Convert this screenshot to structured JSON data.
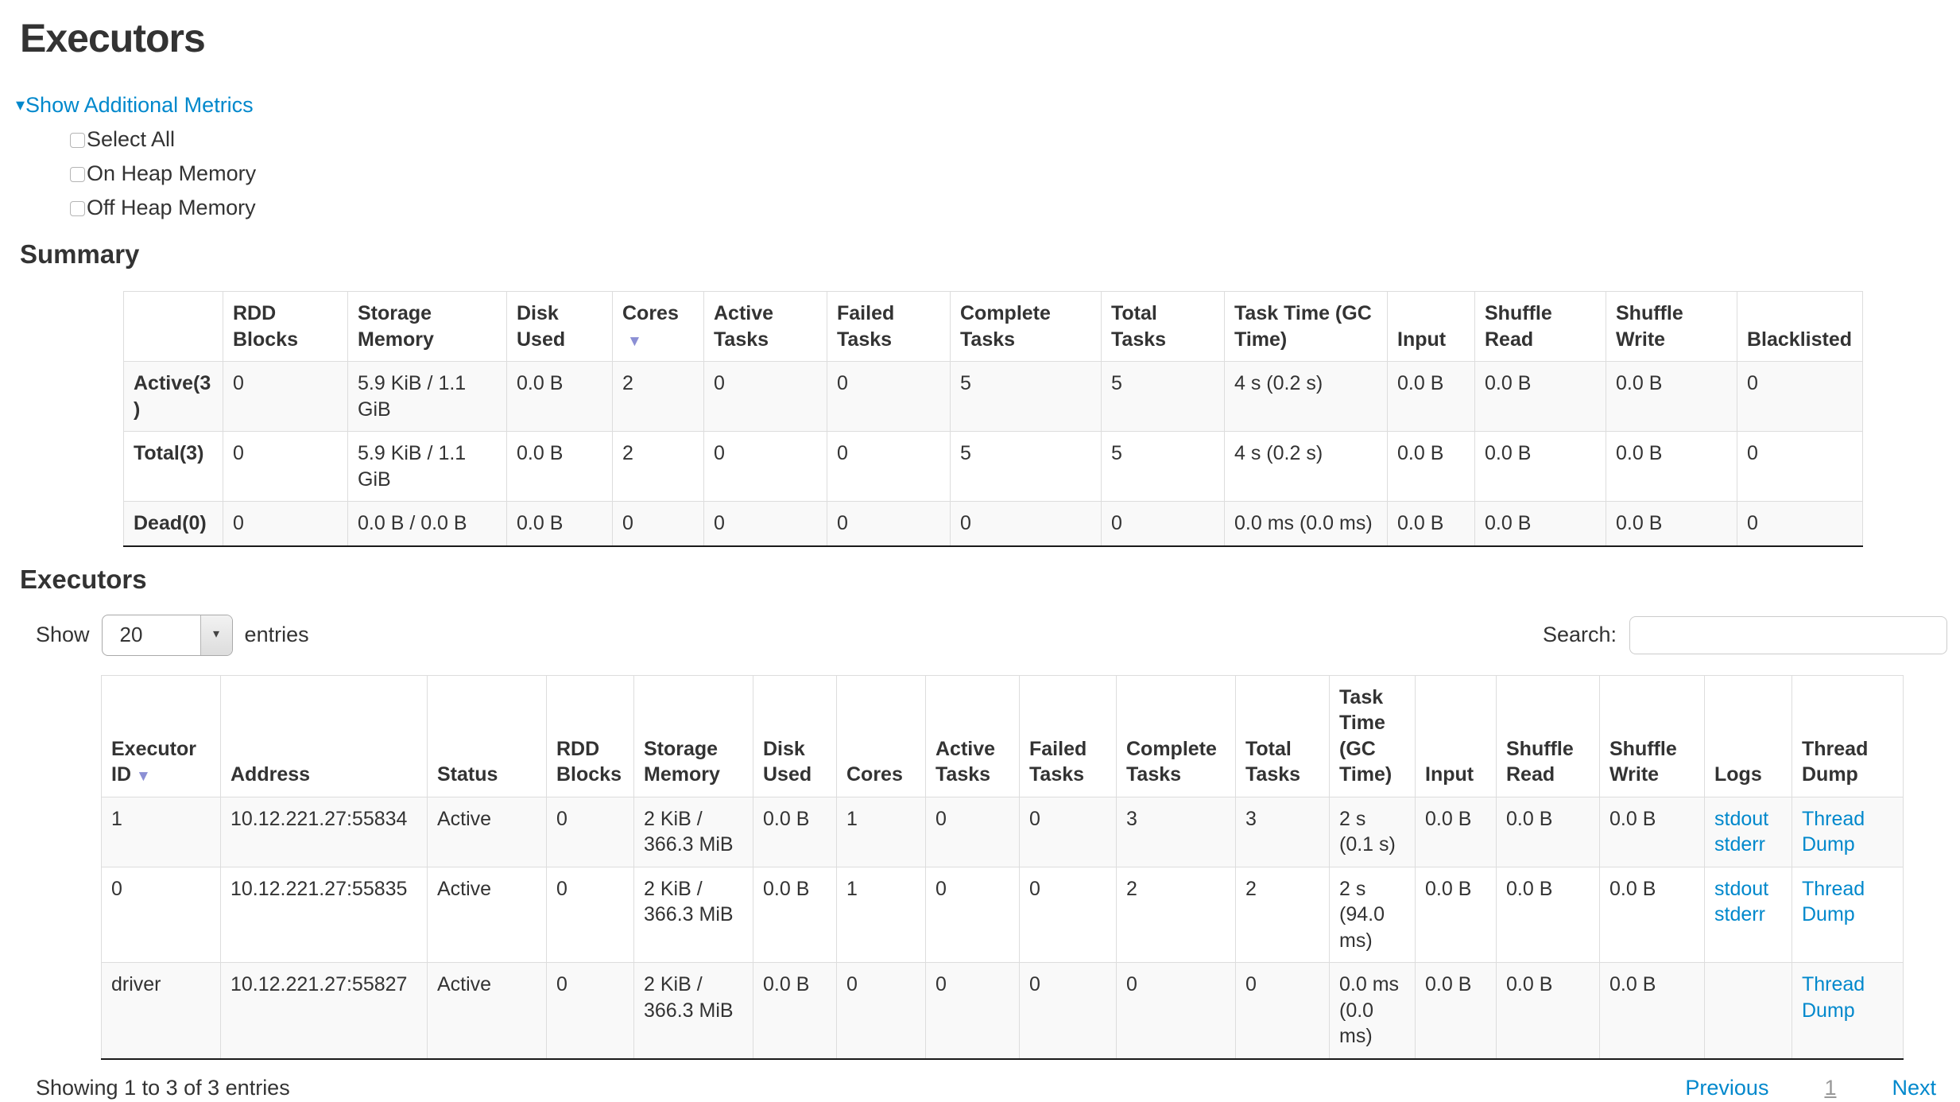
{
  "page": {
    "title": "Executors"
  },
  "colors": {
    "link_blue": "#0088cc",
    "sort_arrow": "#8b8fd4",
    "text": "#333333",
    "page_number_gray": "#999999",
    "stripe": "#f9f9f9",
    "border": "#dddddd"
  },
  "metrics": {
    "toggle_label": "Show Additional Metrics",
    "caret_icon": "▾",
    "items": [
      "Select All",
      "On Heap Memory",
      "Off Heap Memory"
    ]
  },
  "summary": {
    "heading": "Summary",
    "sort_column": "Cores",
    "sort_icon": "▼",
    "columns": [
      "",
      "RDD Blocks",
      "Storage Memory",
      "Disk Used",
      "Cores",
      "Active Tasks",
      "Failed Tasks",
      "Complete Tasks",
      "Total Tasks",
      "Task Time (GC Time)",
      "Input",
      "Shuffle Read",
      "Shuffle Write",
      "Blacklisted"
    ],
    "rows": [
      {
        "label": "Active(3)",
        "cells": [
          "0",
          "5.9 KiB / 1.1 GiB",
          "0.0 B",
          "2",
          "0",
          "0",
          "5",
          "5",
          "4 s (0.2 s)",
          "0.0 B",
          "0.0 B",
          "0.0 B",
          "0"
        ]
      },
      {
        "label": "Total(3)",
        "cells": [
          "0",
          "5.9 KiB / 1.1 GiB",
          "0.0 B",
          "2",
          "0",
          "0",
          "5",
          "5",
          "4 s (0.2 s)",
          "0.0 B",
          "0.0 B",
          "0.0 B",
          "0"
        ]
      },
      {
        "label": "Dead(0)",
        "cells": [
          "0",
          "0.0 B / 0.0 B",
          "0.0 B",
          "0",
          "0",
          "0",
          "0",
          "0",
          "0.0 ms (0.0 ms)",
          "0.0 B",
          "0.0 B",
          "0.0 B",
          "0"
        ]
      }
    ]
  },
  "executors": {
    "heading": "Executors",
    "show_label": "Show",
    "entries_value": "20",
    "entries_label": "entries",
    "search_label": "Search:",
    "search_value": "",
    "sort_column": "Executor ID",
    "sort_icon": "▼",
    "columns": [
      "Executor ID",
      "Address",
      "Status",
      "RDD Blocks",
      "Storage Memory",
      "Disk Used",
      "Cores",
      "Active Tasks",
      "Failed Tasks",
      "Complete Tasks",
      "Total Tasks",
      "Task Time (GC Time)",
      "Input",
      "Shuffle Read",
      "Shuffle Write",
      "Logs",
      "Thread Dump"
    ],
    "rows": [
      {
        "cells": [
          "1",
          "10.12.221.27:55834",
          "Active",
          "0",
          "2 KiB / 366.3 MiB",
          "0.0 B",
          "1",
          "0",
          "0",
          "3",
          "3",
          "2 s (0.1 s)",
          "0.0 B",
          "0.0 B",
          "0.0 B"
        ],
        "logs": [
          "stdout",
          "stderr"
        ],
        "thread_dump": "Thread Dump"
      },
      {
        "cells": [
          "0",
          "10.12.221.27:55835",
          "Active",
          "0",
          "2 KiB / 366.3 MiB",
          "0.0 B",
          "1",
          "0",
          "0",
          "2",
          "2",
          "2 s (94.0 ms)",
          "0.0 B",
          "0.0 B",
          "0.0 B"
        ],
        "logs": [
          "stdout",
          "stderr"
        ],
        "thread_dump": "Thread Dump"
      },
      {
        "cells": [
          "driver",
          "10.12.221.27:55827",
          "Active",
          "0",
          "2 KiB / 366.3 MiB",
          "0.0 B",
          "0",
          "0",
          "0",
          "0",
          "0",
          "0.0 ms (0.0 ms)",
          "0.0 B",
          "0.0 B",
          "0.0 B"
        ],
        "logs": [],
        "thread_dump": "Thread Dump"
      }
    ],
    "footer": {
      "info": "Showing 1 to 3 of 3 entries",
      "previous": "Previous",
      "page": "1",
      "next": "Next"
    }
  }
}
